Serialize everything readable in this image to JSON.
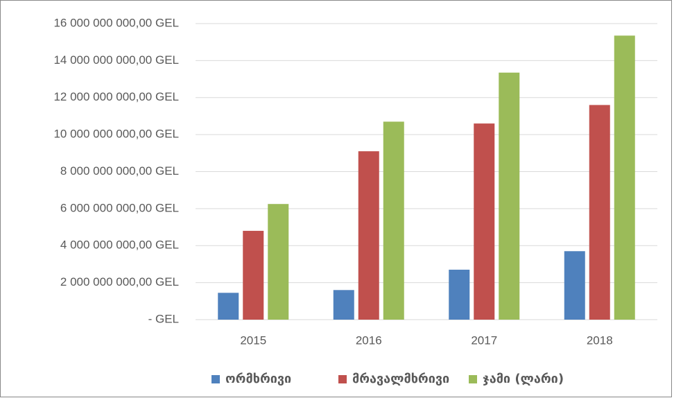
{
  "chart_data": {
    "type": "bar",
    "categories": [
      "2015",
      "2016",
      "2017",
      "2018"
    ],
    "series": [
      {
        "name": "ორმხრივი",
        "color": "#4f81bd",
        "values": [
          1450000000,
          1600000000,
          2700000000,
          3700000000
        ]
      },
      {
        "name": "მრავალმხრივი",
        "color": "#c0504d",
        "values": [
          4800000000,
          9100000000,
          10600000000,
          11600000000
        ]
      },
      {
        "name": "ჯამი (ლარი)",
        "color": "#9bbb59",
        "values": [
          6250000000,
          10700000000,
          13350000000,
          15350000000
        ]
      }
    ],
    "ylim": [
      0,
      16000000000
    ],
    "yticks": [
      {
        "value": 0,
        "label": "-   GEL"
      },
      {
        "value": 2000000000,
        "label": "2 000 000 000,00 GEL"
      },
      {
        "value": 4000000000,
        "label": "4 000 000 000,00 GEL"
      },
      {
        "value": 6000000000,
        "label": "6 000 000 000,00 GEL"
      },
      {
        "value": 8000000000,
        "label": "8 000 000 000,00 GEL"
      },
      {
        "value": 10000000000,
        "label": "10 000 000 000,00 GEL"
      },
      {
        "value": 12000000000,
        "label": "12 000 000 000,00 GEL"
      },
      {
        "value": 14000000000,
        "label": "14 000 000 000,00 GEL"
      },
      {
        "value": 16000000000,
        "label": "16 000 000 000,00 GEL"
      }
    ],
    "grid": true,
    "legend": "bottom"
  }
}
